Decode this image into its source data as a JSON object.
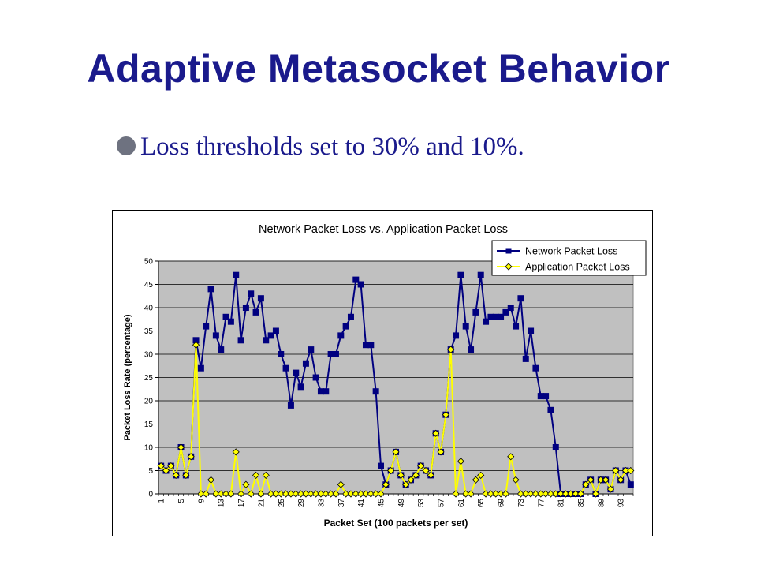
{
  "slide": {
    "title": "Adaptive Metasocket Behavior",
    "bullet": "Loss thresholds set to 30% and 10%."
  },
  "colors": {
    "title": "#1a1a8c",
    "plot_area": "#c0c0c0",
    "network_series": "#000080",
    "application_series": "#ffff00"
  },
  "chart_data": {
    "type": "line",
    "title": "Network Packet Loss vs. Application Packet Loss",
    "xlabel": "Packet Set (100 packets per set)",
    "ylabel": "Packet Loss Rate (percentage)",
    "ylim": [
      0,
      50
    ],
    "yticks": [
      0,
      5,
      10,
      15,
      20,
      25,
      30,
      35,
      40,
      45,
      50
    ],
    "x": [
      1,
      2,
      3,
      4,
      5,
      6,
      7,
      8,
      9,
      10,
      11,
      12,
      13,
      14,
      15,
      16,
      17,
      18,
      19,
      20,
      21,
      22,
      23,
      24,
      25,
      26,
      27,
      28,
      29,
      30,
      31,
      32,
      33,
      34,
      35,
      36,
      37,
      38,
      39,
      40,
      41,
      42,
      43,
      44,
      45,
      46,
      47,
      48,
      49,
      50,
      51,
      52,
      53,
      54,
      55,
      56,
      57,
      58,
      59,
      60,
      61,
      62,
      63,
      64,
      65,
      66,
      67,
      68,
      69,
      70,
      71,
      72,
      73,
      74,
      75,
      76,
      77,
      78,
      79,
      80,
      81,
      82,
      83,
      84,
      85,
      86,
      87,
      88,
      89,
      90,
      91,
      92,
      93,
      94,
      95
    ],
    "xtick_labels": [
      "1",
      "5",
      "9",
      "13",
      "17",
      "21",
      "25",
      "29",
      "33",
      "37",
      "41",
      "45",
      "49",
      "53",
      "57",
      "61",
      "65",
      "69",
      "73",
      "77",
      "81",
      "85",
      "89",
      "93"
    ],
    "xticks": [
      1,
      5,
      9,
      13,
      17,
      21,
      25,
      29,
      33,
      37,
      41,
      45,
      49,
      53,
      57,
      61,
      65,
      69,
      73,
      77,
      81,
      85,
      89,
      93
    ],
    "grid": "horizontal",
    "legend_position": "top-right",
    "series": [
      {
        "name": "Network Packet Loss",
        "marker": "square",
        "color": "#000080",
        "values": [
          6,
          5,
          6,
          4,
          10,
          4,
          8,
          33,
          27,
          36,
          44,
          34,
          31,
          38,
          37,
          47,
          33,
          40,
          43,
          39,
          42,
          33,
          34,
          35,
          30,
          27,
          19,
          26,
          23,
          28,
          31,
          25,
          22,
          22,
          30,
          30,
          34,
          36,
          38,
          46,
          45,
          32,
          32,
          22,
          6,
          2,
          5,
          9,
          4,
          2,
          3,
          4,
          6,
          5,
          4,
          13,
          9,
          17,
          31,
          34,
          47,
          36,
          31,
          39,
          47,
          37,
          38,
          38,
          38,
          39,
          40,
          36,
          42,
          29,
          35,
          27,
          21,
          21,
          18,
          10,
          0,
          0,
          0,
          0,
          0,
          2,
          3,
          0,
          3,
          3,
          1,
          5,
          3,
          5,
          2
        ]
      },
      {
        "name": "Application Packet Loss",
        "marker": "diamond",
        "color": "#ffff00",
        "values": [
          6,
          5,
          6,
          4,
          10,
          4,
          8,
          32,
          0,
          0,
          3,
          0,
          0,
          0,
          0,
          9,
          0,
          2,
          0,
          4,
          0,
          4,
          0,
          0,
          0,
          0,
          0,
          0,
          0,
          0,
          0,
          0,
          0,
          0,
          0,
          0,
          2,
          0,
          0,
          0,
          0,
          0,
          0,
          0,
          0,
          2,
          5,
          9,
          4,
          2,
          3,
          4,
          6,
          5,
          4,
          13,
          9,
          17,
          31,
          0,
          7,
          0,
          0,
          3,
          4,
          0,
          0,
          0,
          0,
          0,
          8,
          3,
          0,
          0,
          0,
          0,
          0,
          0,
          0,
          0,
          0,
          0,
          0,
          0,
          0,
          2,
          3,
          0,
          3,
          3,
          1,
          5,
          3,
          5,
          5
        ]
      }
    ]
  }
}
